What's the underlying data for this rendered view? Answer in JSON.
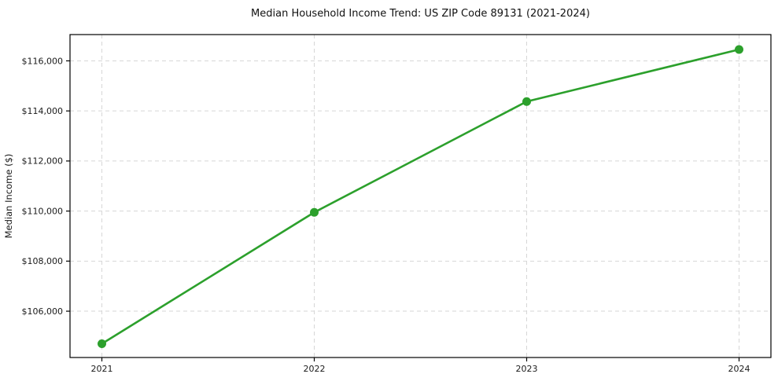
{
  "chart_data": {
    "type": "line",
    "title": "Median Household Income Trend: US ZIP Code 89131 (2021-2024)",
    "ylabel": "Median Income ($)",
    "xlabel": "",
    "x": [
      2021,
      2022,
      2023,
      2024
    ],
    "x_labels": [
      "2021",
      "2022",
      "2023",
      "2024"
    ],
    "values": [
      104700,
      109950,
      114375,
      116455
    ],
    "yticks": [
      106000,
      108000,
      110000,
      112000,
      114000,
      116000
    ],
    "ytick_labels": [
      "$106,000",
      "$108,000",
      "$110,000",
      "$112,000",
      "$114,000",
      "$116,000"
    ],
    "xlim": [
      2020.85,
      2024.15
    ],
    "ylim": [
      104150,
      117050
    ],
    "grid": true,
    "grid_style": "dashed",
    "legend": "none",
    "line_color": "#2ca02c",
    "marker": "circle",
    "marker_size": 5.5,
    "line_width": 2.6,
    "colors": {
      "grid": "#d6d6d6",
      "axis": "#000000",
      "text": "#1a1a1a"
    }
  }
}
